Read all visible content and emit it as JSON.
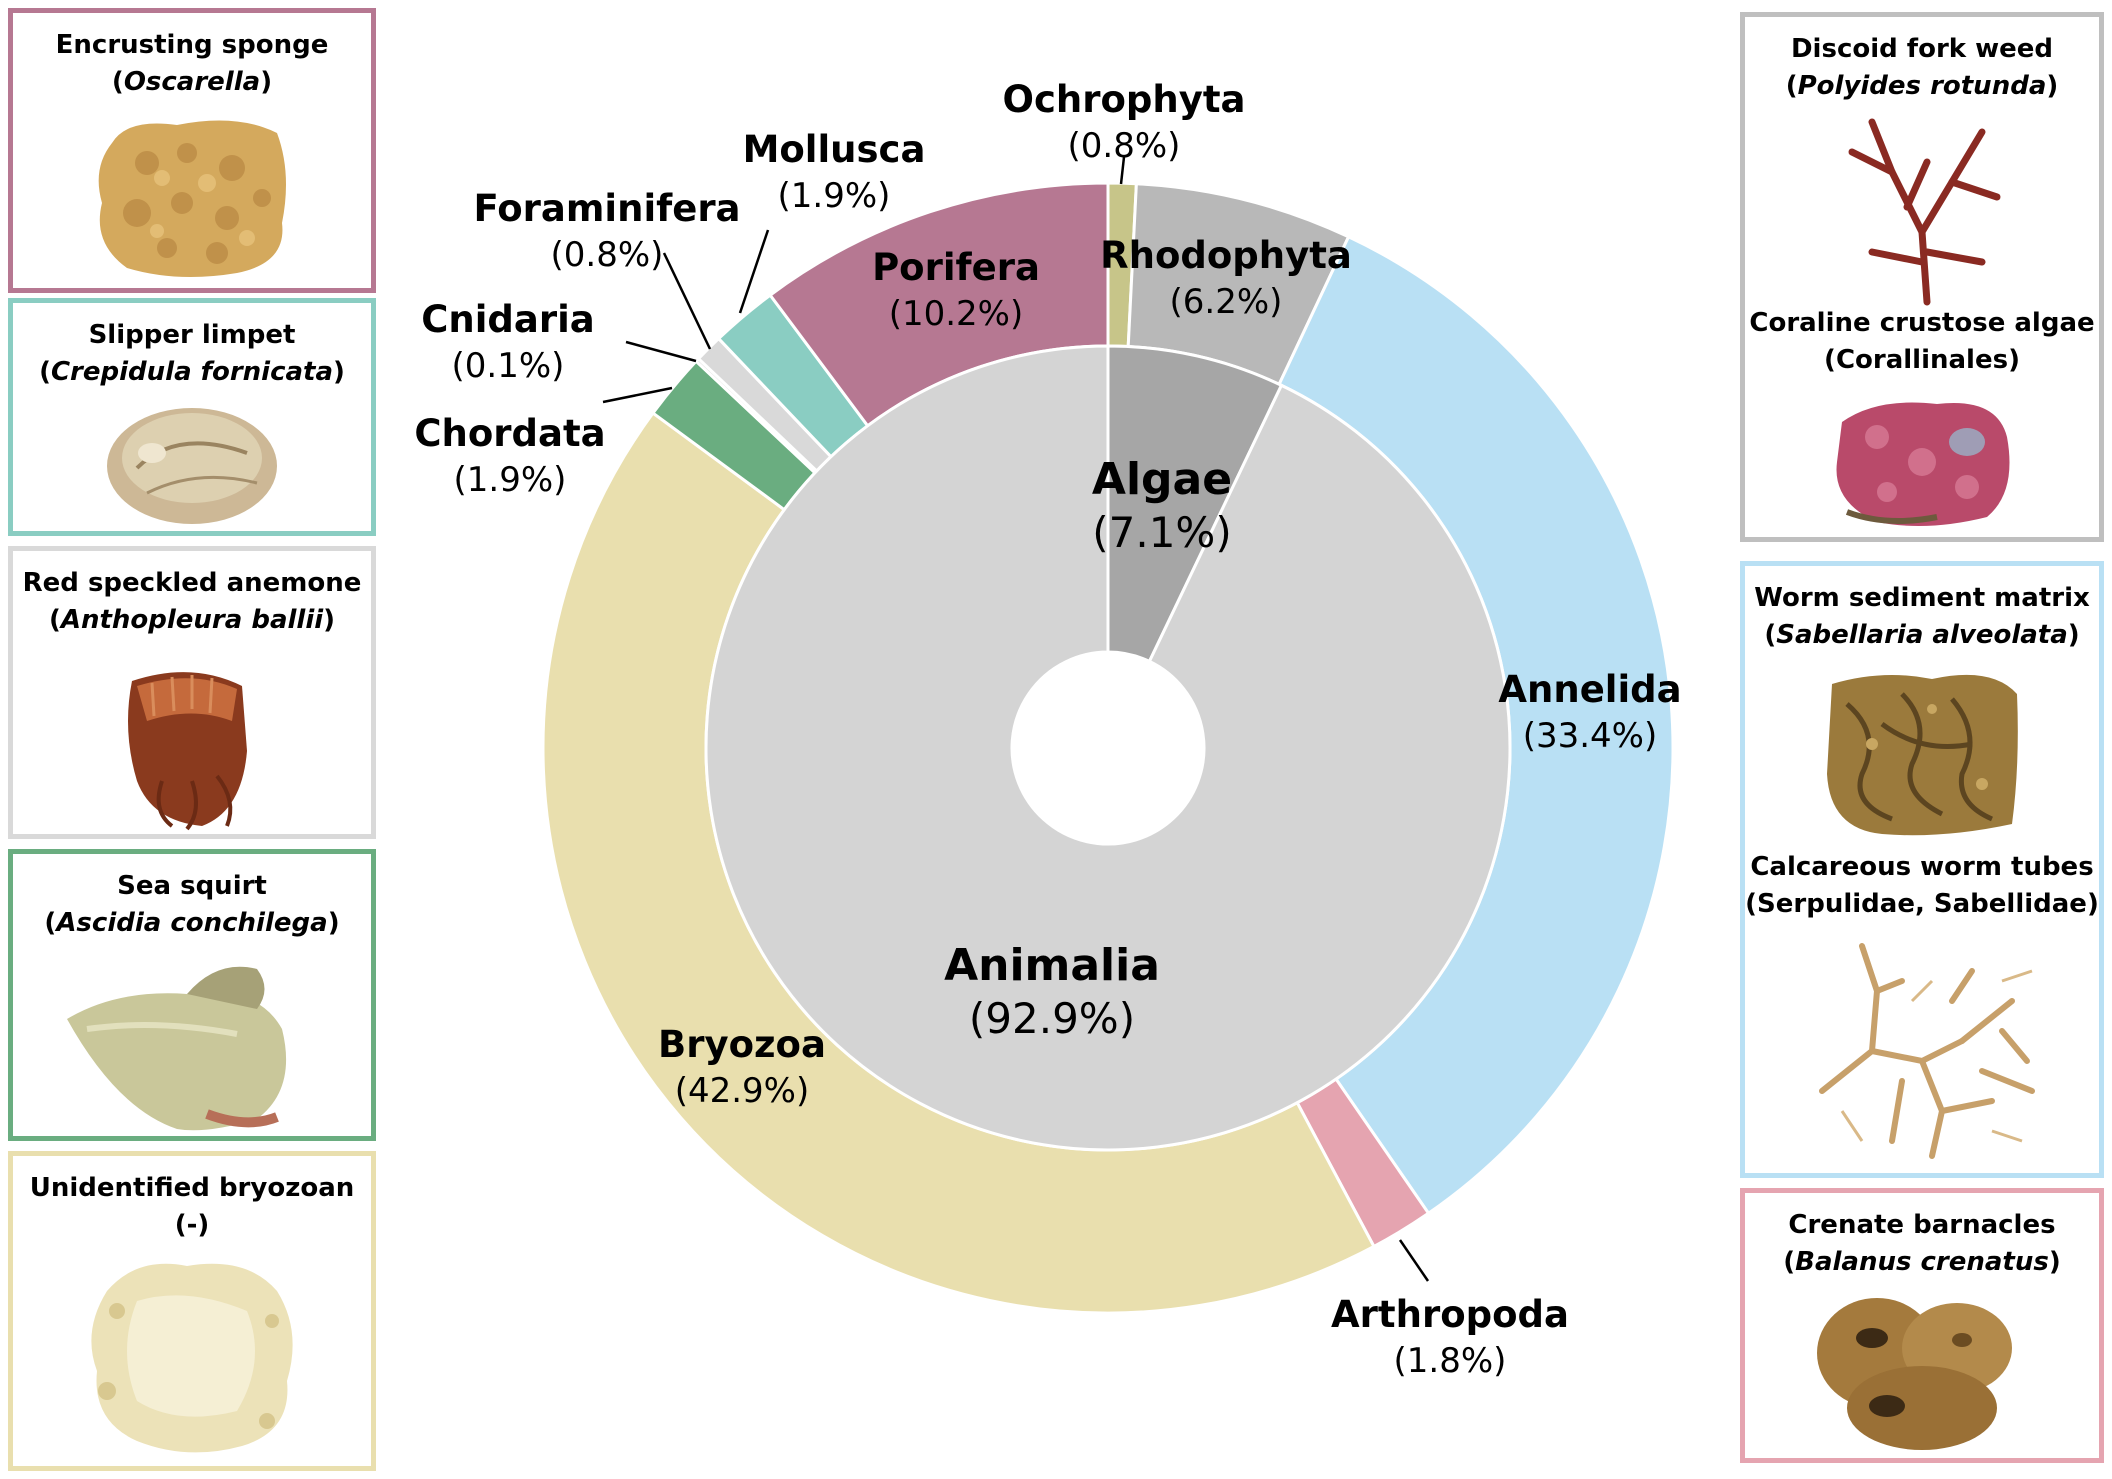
{
  "chart_data": {
    "type": "pie",
    "subtype": "nested-donut",
    "inner_ring": [
      {
        "label": "Algae",
        "value": 7.1,
        "pct_label": "(7.1%)",
        "color": "#a6a6a6"
      },
      {
        "label": "Animalia",
        "value": 92.9,
        "pct_label": "(92.9%)",
        "color": "#d4d4d4"
      }
    ],
    "outer_ring": [
      {
        "label": "Ochrophyta",
        "value": 0.8,
        "pct_label": "(0.8%)",
        "color": "#c7c589",
        "group": "Algae"
      },
      {
        "label": "Rhodophyta",
        "value": 6.2,
        "pct_label": "(6.2%)",
        "color": "#b8b8b8",
        "group": "Algae"
      },
      {
        "label": "Annelida",
        "value": 33.4,
        "pct_label": "(33.4%)",
        "color": "#b9e0f4",
        "group": "Animalia"
      },
      {
        "label": "Arthropoda",
        "value": 1.8,
        "pct_label": "(1.8%)",
        "color": "#e5a4b0",
        "group": "Animalia"
      },
      {
        "label": "Bryozoa",
        "value": 42.9,
        "pct_label": "(42.9%)",
        "color": "#e9dfae",
        "group": "Animalia"
      },
      {
        "label": "Chordata",
        "value": 1.9,
        "pct_label": "(1.9%)",
        "color": "#6aad80",
        "group": "Animalia"
      },
      {
        "label": "Cnidaria",
        "value": 0.1,
        "pct_label": "(0.1%)",
        "color": "#dcdcdc",
        "group": "Animalia"
      },
      {
        "label": "Foraminifera",
        "value": 0.8,
        "pct_label": "(0.8%)",
        "color": "#d9d9d9",
        "group": "Animalia"
      },
      {
        "label": "Mollusca",
        "value": 1.9,
        "pct_label": "(1.9%)",
        "color": "#8acdc2",
        "group": "Animalia"
      },
      {
        "label": "Porifera",
        "value": 10.2,
        "pct_label": "(10.2%)",
        "color": "#b67892",
        "group": "Animalia"
      }
    ]
  },
  "specimens_left": [
    {
      "common": "Encrusting sponge",
      "sci": "Oscarella",
      "sci_italic": true,
      "color": "#b67892",
      "icon": "sponge-photo"
    },
    {
      "common": "Slipper limpet",
      "sci": "Crepidula fornicata",
      "sci_italic": true,
      "color": "#8acdc2",
      "icon": "limpet-photo"
    },
    {
      "common": "Red speckled anemone",
      "sci": "Anthopleura ballii",
      "sci_italic": true,
      "color": "#d9d9d9",
      "icon": "anemone-photo"
    },
    {
      "common": "Sea squirt",
      "sci": "Ascidia conchilega",
      "sci_italic": true,
      "color": "#6aad80",
      "icon": "sea-squirt-photo"
    },
    {
      "common": "Unidentified bryozoan",
      "sci": "-",
      "sci_italic": false,
      "color": "#e9dfae",
      "icon": "bryozoan-photo"
    }
  ],
  "specimens_right": [
    {
      "color": "#bfbfbf",
      "items": [
        {
          "common": "Discoid fork weed",
          "sci": "Polyides rotunda",
          "sci_italic": true,
          "icon": "fork-weed-photo"
        },
        {
          "common": "Coraline crustose algae",
          "sci": "Corallinales",
          "sci_italic": false,
          "icon": "coralline-photo"
        }
      ]
    },
    {
      "color": "#b9e0f4",
      "items": [
        {
          "common": "Worm sediment matrix",
          "sci": "Sabellaria alveolata",
          "sci_italic": true,
          "icon": "worm-matrix-photo"
        },
        {
          "common": "Calcareous worm tubes",
          "sci": "Serpulidae, Sabellidae",
          "sci_italic": false,
          "icon": "worm-tubes-photo"
        }
      ]
    },
    {
      "color": "#e5a4b0",
      "items": [
        {
          "common": "Crenate barnacles",
          "sci": "Balanus crenatus",
          "sci_italic": true,
          "icon": "barnacles-photo"
        }
      ]
    }
  ]
}
